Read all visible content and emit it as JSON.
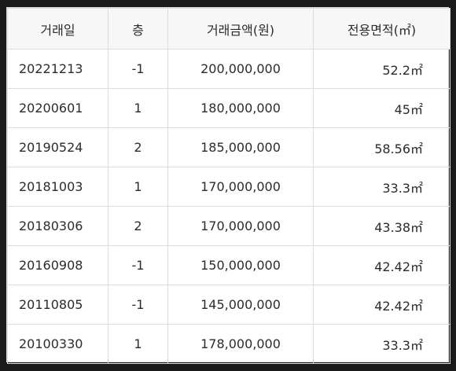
{
  "table": {
    "headers": [
      "거래일",
      "층",
      "거래금액(원)",
      "전용면적(㎡)"
    ],
    "rows": [
      {
        "date": "20221213",
        "floor": "-1",
        "price": "200,000,000",
        "area": "52.2㎡"
      },
      {
        "date": "20200601",
        "floor": "1",
        "price": "180,000,000",
        "area": "45㎡"
      },
      {
        "date": "20190524",
        "floor": "2",
        "price": "185,000,000",
        "area": "58.56㎡"
      },
      {
        "date": "20181003",
        "floor": "1",
        "price": "170,000,000",
        "area": "33.3㎡"
      },
      {
        "date": "20180306",
        "floor": "2",
        "price": "170,000,000",
        "area": "43.38㎡"
      },
      {
        "date": "20160908",
        "floor": "-1",
        "price": "150,000,000",
        "area": "42.42㎡"
      },
      {
        "date": "20110805",
        "floor": "-1",
        "price": "145,000,000",
        "area": "42.42㎡"
      },
      {
        "date": "20100330",
        "floor": "1",
        "price": "178,000,000",
        "area": "33.3㎡"
      }
    ]
  }
}
